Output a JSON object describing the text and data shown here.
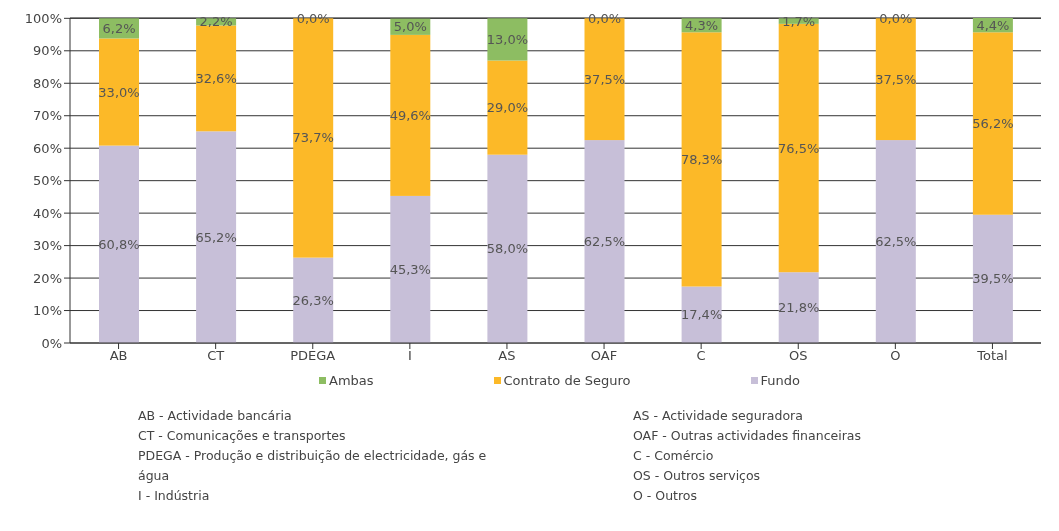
{
  "chart_data": {
    "type": "bar",
    "stacked": true,
    "categories": [
      "AB",
      "CT",
      "PDEGA",
      "I",
      "AS",
      "OAF",
      "C",
      "OS",
      "O",
      "Total"
    ],
    "series": [
      {
        "name": "Fundo",
        "color": "#c7bfd8",
        "values": [
          60.8,
          65.2,
          26.3,
          45.3,
          58.0,
          62.5,
          17.4,
          21.8,
          62.5,
          39.5
        ],
        "value_labels": [
          "60,8%",
          "65,2%",
          "26,3%",
          "45,3%",
          "58,0%",
          "62,5%",
          "17,4%",
          "21,8%",
          "62,5%",
          "39,5%"
        ]
      },
      {
        "name": "Contrato de Seguro",
        "color": "#fcb928",
        "values": [
          33.0,
          32.6,
          73.7,
          49.6,
          29.0,
          37.5,
          78.3,
          76.5,
          37.5,
          56.2
        ],
        "value_labels": [
          "33,0%",
          "32,6%",
          "73,7%",
          "49,6%",
          "29,0%",
          "37,5%",
          "78,3%",
          "76,5%",
          "37,5%",
          "56,2%"
        ]
      },
      {
        "name": "Ambas",
        "color": "#8dbd62",
        "values": [
          6.2,
          2.2,
          0.0,
          5.0,
          13.0,
          0.0,
          4.3,
          1.7,
          0.0,
          4.4
        ],
        "value_labels": [
          "6,2%",
          "2,2%",
          "0,0%",
          "5,0%",
          "13,0%",
          "0,0%",
          "4,3%",
          "1,7%",
          "0,0%",
          "4,4%"
        ]
      }
    ],
    "ylim": [
      0,
      100
    ],
    "yticks": [
      {
        "value": 0,
        "label": "0%"
      },
      {
        "value": 10,
        "label": "10%"
      },
      {
        "value": 20,
        "label": "20%"
      },
      {
        "value": 30,
        "label": "30%"
      },
      {
        "value": 40,
        "label": "40%"
      },
      {
        "value": 50,
        "label": "50%"
      },
      {
        "value": 60,
        "label": "60%"
      },
      {
        "value": 70,
        "label": "70%"
      },
      {
        "value": 80,
        "label": "80%"
      },
      {
        "value": 90,
        "label": "90%"
      },
      {
        "value": 100,
        "label": "100%"
      }
    ],
    "grid": "y",
    "legend": "bottom",
    "annotations": [
      "AB - Actividade bancária",
      "CT - Comunicações e transportes",
      "PDEGA - Produção e distribuição de electricidade, gás e água",
      "I - Indústria",
      "AS - Actividade seguradora",
      "OAF - Outras actividades financeiras",
      "C - Comércio",
      "OS - Outros serviços",
      "O - Outros"
    ]
  }
}
